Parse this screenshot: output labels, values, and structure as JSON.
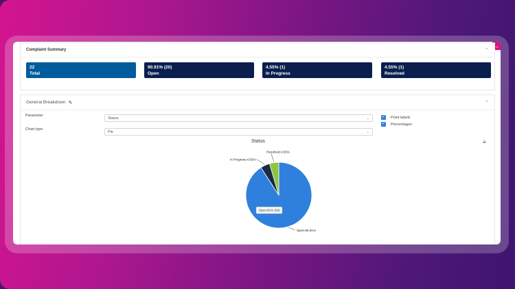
{
  "summary": {
    "title": "Complaint Summary",
    "cards": [
      {
        "value": "22",
        "label": "Total",
        "color": "#005b9c"
      },
      {
        "value": "90.91% (20)",
        "label": "Open",
        "color": "#0a1f4e"
      },
      {
        "value": "4.55% (1)",
        "label": "In Progress",
        "color": "#0a1f4e"
      },
      {
        "value": "4.55% (1)",
        "label": "Resolved",
        "color": "#0a1f4e"
      }
    ]
  },
  "breakdown": {
    "title": "General Breakdown",
    "parameter_label": "Parameter",
    "parameter_value": "Status",
    "chart_type_label": "Chart type",
    "chart_type_value": "Pie",
    "options": [
      {
        "label": "Point labels",
        "checked": true
      },
      {
        "label": "Percentages",
        "checked": true
      }
    ]
  },
  "chart_data": {
    "type": "pie",
    "title": "Status",
    "slices": [
      {
        "name": "Open",
        "value": 90.91,
        "label": "Open:90.91%",
        "color": "#2e80dc"
      },
      {
        "name": "In Progress",
        "value": 4.55,
        "label": "In Progress:4.55%",
        "color": "#1b2a44"
      },
      {
        "name": "Resolved",
        "value": 4.55,
        "label": "Resolved:4.55%",
        "color": "#8cc63f"
      }
    ],
    "tooltip": "Open:91% (20)"
  },
  "icons": {
    "collapse": "chevron-up-icon",
    "edit": "edit-icon",
    "menu": "hamburger-icon"
  }
}
